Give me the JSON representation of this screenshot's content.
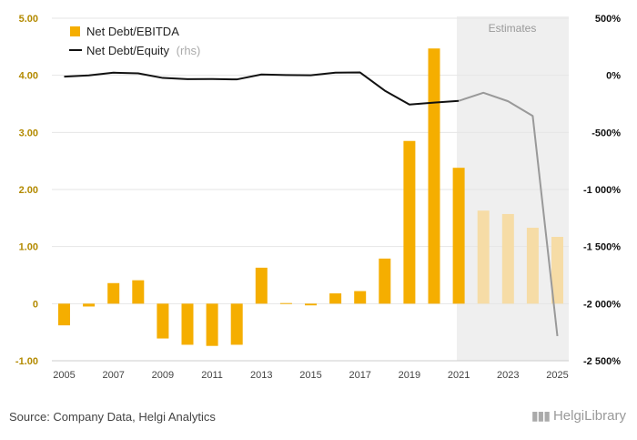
{
  "chart_data": {
    "type": "bar",
    "title": "",
    "categories": [
      "2005",
      "2006",
      "2007",
      "2008",
      "2009",
      "2010",
      "2011",
      "2012",
      "2013",
      "2014",
      "2015",
      "2016",
      "2017",
      "2018",
      "2019",
      "2020",
      "2021",
      "2022",
      "2023",
      "2024",
      "2025"
    ],
    "x_tick_labels": [
      "2005",
      "2007",
      "2009",
      "2011",
      "2013",
      "2015",
      "2017",
      "2019",
      "2021",
      "2023",
      "2025"
    ],
    "series": [
      {
        "name": "Net Debt/EBITDA",
        "type": "bar",
        "axis": "left",
        "color": "#f5ae00",
        "estimate_color": "#f6dca6",
        "values": [
          -0.38,
          -0.05,
          0.36,
          0.41,
          -0.61,
          -0.72,
          -0.74,
          -0.72,
          0.63,
          0.01,
          -0.03,
          0.18,
          0.22,
          0.79,
          2.85,
          4.47,
          2.38,
          1.63,
          1.57,
          1.33,
          1.17
        ]
      },
      {
        "name": "Net Debt/Equity",
        "name_suffix": "(rhs)",
        "type": "line",
        "axis": "right",
        "color": "#111111",
        "estimate_color": "#999999",
        "values": [
          -12,
          -1,
          23,
          17,
          -23,
          -34,
          -33,
          -36,
          7,
          2,
          0,
          23,
          25,
          -134,
          -256,
          -239,
          -224,
          -153,
          -227,
          -356,
          -2284
        ]
      }
    ],
    "left_axis": {
      "ylim": [
        -1,
        5
      ],
      "ticks": [
        "-1.00",
        "0",
        "1.00",
        "2.00",
        "3.00",
        "4.00",
        "5.00"
      ],
      "color": "#b38a00"
    },
    "right_axis": {
      "ylim": [
        -2500,
        500
      ],
      "ticks": [
        "-2 500%",
        "-2 000%",
        "-1 500%",
        "-1 000%",
        "-500%",
        "0%",
        "500%"
      ]
    },
    "estimates": {
      "label": "Estimates",
      "from": "2022",
      "to": "2025"
    },
    "grid": true,
    "legend_position": "top-left"
  },
  "footer": {
    "source": "Source: Company Data, Helgi Analytics",
    "logo_text": "HelgiLibrary"
  }
}
